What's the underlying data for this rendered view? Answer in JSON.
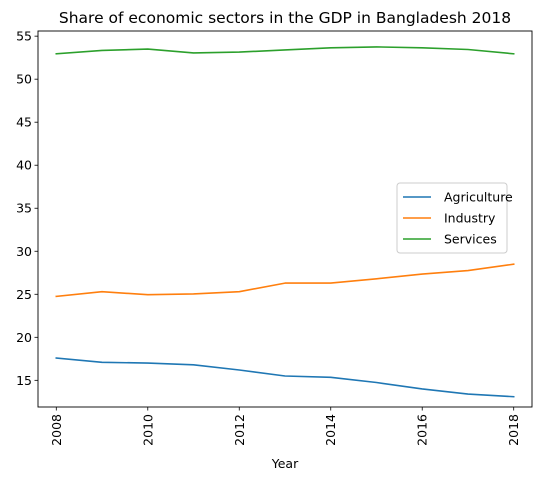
{
  "chart_data": {
    "type": "line",
    "title": "Share of economic sectors in the GDP in Bangladesh 2018",
    "xlabel": "Year",
    "ylabel": "",
    "x": [
      2008,
      2009,
      2010,
      2011,
      2012,
      2013,
      2014,
      2015,
      2016,
      2017,
      2018
    ],
    "xlim": [
      2007.6,
      2018.4
    ],
    "ylim": [
      11.9,
      55.6
    ],
    "xticks": [
      "2008",
      "2010",
      "2012",
      "2014",
      "2016",
      "2018"
    ],
    "yticks": [
      "15",
      "20",
      "25",
      "30",
      "35",
      "40",
      "45",
      "50",
      "55"
    ],
    "grid": false,
    "legend_position": "center-right",
    "series": [
      {
        "name": "Agriculture",
        "color": "#1f77b4",
        "values": [
          17.6,
          17.1,
          17.0,
          16.8,
          16.2,
          15.5,
          15.35,
          14.75,
          14.0,
          13.4,
          13.1
        ]
      },
      {
        "name": "Industry",
        "color": "#ff7f0e",
        "values": [
          24.75,
          25.3,
          24.95,
          25.05,
          25.3,
          26.3,
          26.3,
          26.8,
          27.35,
          27.75,
          28.5
        ]
      },
      {
        "name": "Services",
        "color": "#2ca02c",
        "values": [
          52.95,
          53.35,
          53.5,
          53.05,
          53.15,
          53.4,
          53.65,
          53.75,
          53.65,
          53.45,
          52.95
        ]
      }
    ]
  }
}
